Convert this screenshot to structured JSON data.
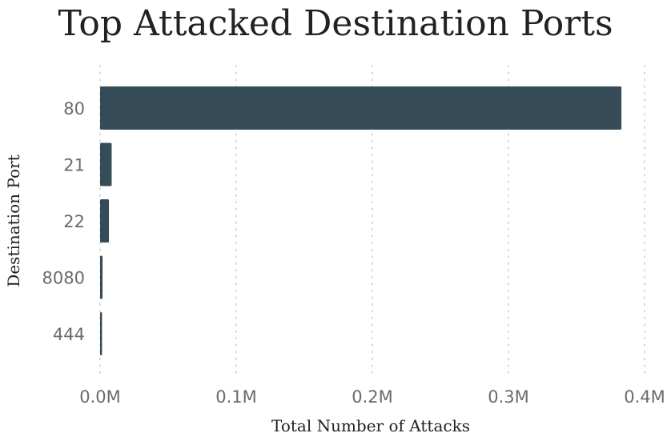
{
  "chart_data": {
    "type": "bar",
    "orientation": "horizontal",
    "title": "Top Attacked Destination Ports",
    "xlabel": "Total Number of Attacks",
    "ylabel": "Destination Port",
    "categories": [
      "80",
      "21",
      "22",
      "8080",
      "444"
    ],
    "values": [
      383000,
      8500,
      6500,
      1800,
      1400
    ],
    "xlim": [
      0,
      400000
    ],
    "xticks": [
      0,
      100000,
      200000,
      300000,
      400000
    ],
    "xtick_labels": [
      "0.0M",
      "0.1M",
      "0.2M",
      "0.3M",
      "0.4M"
    ],
    "grid": "vertical dotted",
    "colors": {
      "bar": "#364c59",
      "text": "#222222",
      "tick": "#6b6b6b",
      "grid": "#c9c9c9"
    }
  }
}
